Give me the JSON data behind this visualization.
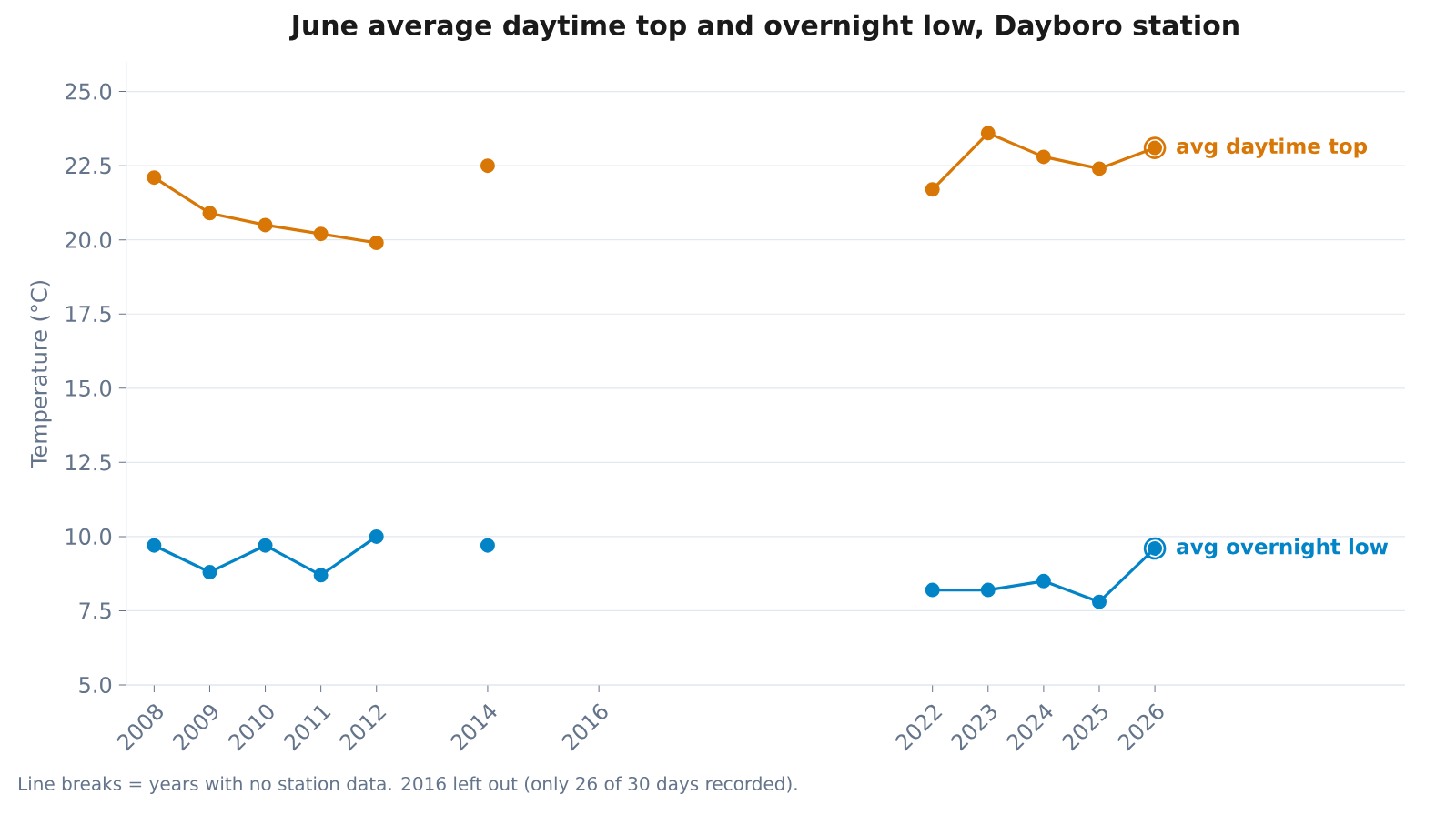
{
  "chart_data": {
    "type": "line",
    "title": "June average daytime top and overnight low, Dayboro station",
    "ylabel": "Temperature (°C)",
    "x": [
      2008,
      2009,
      2010,
      2011,
      2012,
      2013,
      2014,
      2015,
      2022,
      2023,
      2024,
      2025,
      2026
    ],
    "series": [
      {
        "name": "avg daytime top",
        "color": "#d97706",
        "values": [
          22.1,
          20.9,
          20.5,
          20.2,
          19.9,
          null,
          22.5,
          null,
          21.7,
          23.6,
          22.8,
          22.4,
          23.1
        ]
      },
      {
        "name": "avg overnight low",
        "color": "#0284c7",
        "values": [
          9.7,
          8.8,
          9.7,
          8.7,
          10.0,
          null,
          9.7,
          null,
          8.2,
          8.2,
          8.5,
          7.8,
          9.6
        ]
      }
    ],
    "xlim": [
      2007.5,
      2030.5
    ],
    "ylim": [
      5.0,
      26.0
    ],
    "xticks": [
      2008,
      2009,
      2010,
      2011,
      2012,
      2014,
      2016,
      2022,
      2023,
      2024,
      2025,
      2026
    ],
    "yticks": [
      {
        "value": 5,
        "label": "5.0"
      },
      {
        "value": 7.5,
        "label": "7.5"
      },
      {
        "value": 10,
        "label": "10.0"
      },
      {
        "value": 12.5,
        "label": "12.5"
      },
      {
        "value": 15,
        "label": "15.0"
      },
      {
        "value": 17.5,
        "label": "17.5"
      },
      {
        "value": 20,
        "label": "20.0"
      },
      {
        "value": 22.5,
        "label": "22.5"
      },
      {
        "value": 25,
        "label": "25.0"
      }
    ],
    "grid": "y",
    "legend": "right",
    "marker": "circle",
    "line_style": "solid",
    "annotations": [
      "Line breaks = years with no station data. 2016 left out (only 26 of 30 days recorded)."
    ]
  }
}
